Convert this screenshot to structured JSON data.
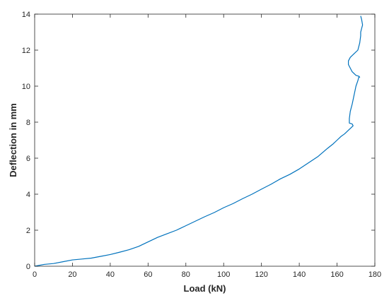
{
  "chart_data": {
    "type": "line",
    "title": "",
    "xlabel": "Load (kN)",
    "ylabel": "Deflection in mm",
    "xlim": [
      0,
      180
    ],
    "ylim": [
      0,
      14
    ],
    "xticks": [
      0,
      20,
      40,
      60,
      80,
      100,
      120,
      140,
      160,
      180
    ],
    "yticks": [
      0,
      2,
      4,
      6,
      8,
      10,
      12,
      14
    ],
    "grid": false,
    "box": true,
    "line_color": "#0072BD",
    "series": [
      {
        "x": [
          0,
          5,
          10,
          15,
          20,
          25,
          30,
          35,
          40,
          45,
          50,
          55,
          60,
          65,
          70,
          75,
          80,
          85,
          90,
          95,
          100,
          105,
          110,
          115,
          120,
          125,
          130,
          135,
          140,
          145,
          150,
          155,
          158,
          160,
          162,
          164,
          166,
          167.5,
          168.5,
          168,
          166.5,
          166.5,
          167,
          168,
          169,
          170,
          171,
          171.5,
          172,
          171.5,
          170,
          168,
          167,
          166,
          166,
          167,
          169,
          171,
          172,
          172.5,
          172.5,
          173,
          173.5,
          173,
          172.5
        ],
        "y": [
          0,
          0.1,
          0.15,
          0.25,
          0.35,
          0.4,
          0.45,
          0.55,
          0.65,
          0.78,
          0.92,
          1.1,
          1.35,
          1.6,
          1.8,
          2.0,
          2.25,
          2.5,
          2.75,
          2.98,
          3.25,
          3.48,
          3.75,
          4.0,
          4.28,
          4.55,
          4.85,
          5.1,
          5.4,
          5.75,
          6.1,
          6.55,
          6.8,
          7.0,
          7.2,
          7.35,
          7.55,
          7.7,
          7.8,
          7.9,
          7.95,
          8.2,
          8.6,
          9.0,
          9.5,
          10.0,
          10.3,
          10.5,
          10.5,
          10.55,
          10.6,
          10.8,
          11.0,
          11.2,
          11.4,
          11.6,
          11.8,
          12.0,
          12.4,
          12.8,
          13.0,
          13.2,
          13.4,
          13.7,
          13.9
        ]
      }
    ]
  }
}
